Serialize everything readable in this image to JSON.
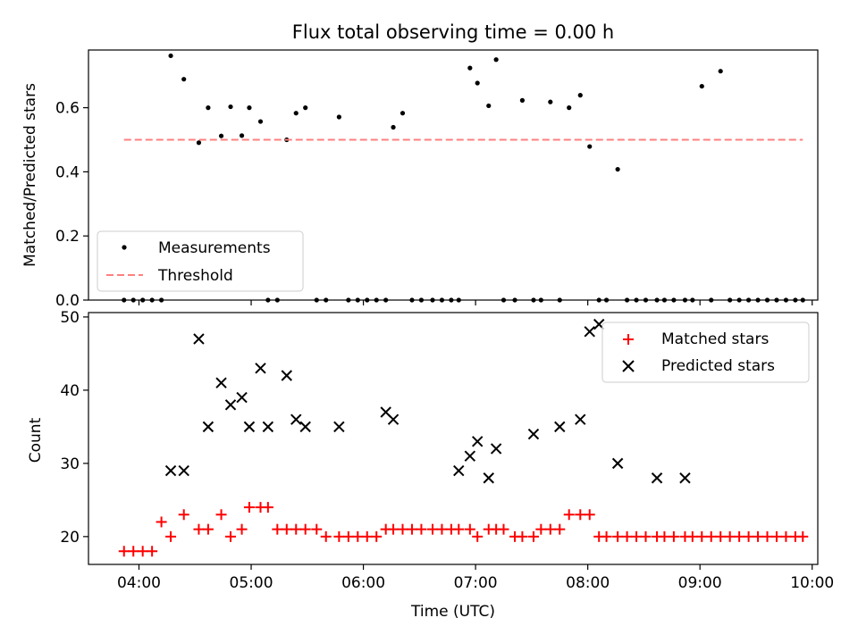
{
  "figure": {
    "title": "Flux total observing time = 0.00 h"
  },
  "chart_data": [
    {
      "type": "scatter",
      "ylabel": "Matched/Predicted stars",
      "ylim": [
        0.0,
        0.78
      ],
      "yticks": [
        0.0,
        0.2,
        0.4,
        0.6
      ],
      "ytick_labels": [
        "0.0",
        "0.2",
        "0.4",
        "0.6"
      ],
      "xlim": [
        "03:33",
        "10:03"
      ],
      "grid": false,
      "legend_position": "lower-left",
      "series": [
        {
          "name": "Measurements",
          "kind": "points",
          "color": "#000000",
          "x": [
            "03:52",
            "03:57",
            "04:02",
            "04:07",
            "04:12",
            "04:17",
            "04:24",
            "04:32",
            "04:37",
            "04:44",
            "04:49",
            "04:55",
            "04:59",
            "05:05",
            "05:09",
            "05:14",
            "05:19",
            "05:24",
            "05:29",
            "05:35",
            "05:40",
            "05:47",
            "05:52",
            "05:57",
            "06:02",
            "06:07",
            "06:12",
            "06:16",
            "06:21",
            "06:26",
            "06:31",
            "06:37",
            "06:42",
            "06:47",
            "06:51",
            "06:57",
            "07:01",
            "07:07",
            "07:11",
            "07:15",
            "07:21",
            "07:25",
            "07:31",
            "07:35",
            "07:40",
            "07:45",
            "07:50",
            "07:56",
            "08:01",
            "08:06",
            "08:10",
            "08:16",
            "08:21",
            "08:26",
            "08:31",
            "08:37",
            "08:41",
            "08:46",
            "08:52",
            "08:56",
            "09:01",
            "09:06",
            "09:11",
            "09:16",
            "09:21",
            "09:26",
            "09:31",
            "09:36",
            "09:41",
            "09:46",
            "09:51",
            "09:55"
          ],
          "y": [
            0,
            0,
            0,
            0,
            0,
            0.762,
            0.689,
            0.491,
            0.6,
            0.512,
            0.603,
            0.513,
            0.6,
            0.557,
            0,
            0,
            0.5,
            0.583,
            0.6,
            0,
            0,
            0.571,
            0,
            0,
            0,
            0,
            0,
            0.539,
            0.583,
            0,
            0,
            0,
            0,
            0,
            0,
            0.724,
            0.677,
            0.606,
            0.75,
            0,
            0,
            0.623,
            0,
            0,
            0.618,
            0,
            0.6,
            0.639,
            0.479,
            0,
            0,
            0.408,
            0,
            0,
            0,
            0,
            0,
            0,
            0,
            0,
            0.667,
            0,
            0.714,
            0,
            0,
            0,
            0,
            0,
            0,
            0,
            0,
            0
          ]
        },
        {
          "name": "Threshold",
          "kind": "dashed-line",
          "color": "#ff7f7f",
          "x": [
            "03:52",
            "09:55"
          ],
          "y": [
            0.5,
            0.5
          ]
        }
      ]
    },
    {
      "type": "scatter",
      "ylabel": "Count",
      "xlabel": "Time (UTC)",
      "ylim": [
        16.2,
        50.6
      ],
      "yticks": [
        20,
        30,
        40,
        50
      ],
      "ytick_labels": [
        "20",
        "30",
        "40",
        "50"
      ],
      "xlim": [
        "03:33",
        "10:03"
      ],
      "xticks": [
        "04:00",
        "05:00",
        "06:00",
        "07:00",
        "08:00",
        "09:00",
        "10:00"
      ],
      "xtick_labels": [
        "04:00",
        "05:00",
        "06:00",
        "07:00",
        "08:00",
        "09:00",
        "10:00"
      ],
      "grid": false,
      "legend_position": "upper-right",
      "series": [
        {
          "name": "Matched stars",
          "marker": "+",
          "color": "#ff0000",
          "x": [
            "03:52",
            "03:57",
            "04:02",
            "04:07",
            "04:12",
            "04:17",
            "04:24",
            "04:32",
            "04:37",
            "04:44",
            "04:49",
            "04:55",
            "04:59",
            "05:05",
            "05:09",
            "05:14",
            "05:19",
            "05:24",
            "05:29",
            "05:35",
            "05:40",
            "05:47",
            "05:52",
            "05:57",
            "06:02",
            "06:07",
            "06:12",
            "06:16",
            "06:21",
            "06:26",
            "06:31",
            "06:37",
            "06:42",
            "06:47",
            "06:51",
            "06:57",
            "07:01",
            "07:07",
            "07:11",
            "07:15",
            "07:21",
            "07:25",
            "07:31",
            "07:35",
            "07:40",
            "07:45",
            "07:50",
            "07:56",
            "08:01",
            "08:06",
            "08:10",
            "08:16",
            "08:21",
            "08:26",
            "08:31",
            "08:37",
            "08:41",
            "08:46",
            "08:52",
            "08:56",
            "09:01",
            "09:06",
            "09:11",
            "09:16",
            "09:21",
            "09:26",
            "09:31",
            "09:36",
            "09:41",
            "09:46",
            "09:51",
            "09:55"
          ],
          "y": [
            18,
            18,
            18,
            18,
            22,
            20,
            23,
            21,
            21,
            23,
            20,
            21,
            24,
            24,
            24,
            21,
            21,
            21,
            21,
            21,
            20,
            20,
            20,
            20,
            20,
            20,
            21,
            21,
            21,
            21,
            21,
            21,
            21,
            21,
            21,
            21,
            20,
            21,
            21,
            21,
            20,
            20,
            20,
            21,
            21,
            21,
            23,
            23,
            23,
            20,
            20,
            20,
            20,
            20,
            20,
            20,
            20,
            20,
            20,
            20,
            20,
            20,
            20,
            20,
            20,
            20,
            20,
            20,
            20,
            20,
            20,
            20
          ]
        },
        {
          "name": "Predicted stars",
          "marker": "x",
          "color": "#000000",
          "x": [
            "04:17",
            "04:24",
            "04:32",
            "04:37",
            "04:44",
            "04:49",
            "04:55",
            "04:59",
            "05:05",
            "05:09",
            "05:19",
            "05:24",
            "05:29",
            "05:47",
            "06:12",
            "06:16",
            "06:51",
            "06:57",
            "07:01",
            "07:07",
            "07:11",
            "07:31",
            "07:45",
            "07:56",
            "08:01",
            "08:06",
            "08:16",
            "08:37",
            "08:52"
          ],
          "y": [
            29,
            29,
            47,
            35,
            41,
            38,
            39,
            35,
            43,
            35,
            42,
            36,
            35,
            35,
            37,
            36,
            29,
            31,
            33,
            28,
            32,
            34,
            35,
            36,
            48,
            49,
            30,
            28,
            28
          ]
        }
      ]
    }
  ]
}
